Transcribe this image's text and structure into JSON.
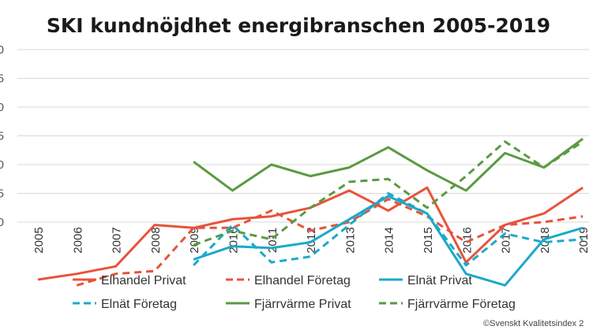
{
  "chart_data": {
    "type": "line",
    "title": "SKI kundnöjdhet energibranschen 2005-2019",
    "credit": "©Svenskt Kvalitetsindex 2",
    "xlabel": "",
    "ylabel": "",
    "x": [
      "2005",
      "2006",
      "2007",
      "2008",
      "2009",
      "2010",
      "2011",
      "2012",
      "2013",
      "2014",
      "2015",
      "2016",
      "2017",
      "2018",
      "2019"
    ],
    "y_tick_labels": [
      "0",
      "5",
      "0",
      "5",
      "0",
      "5",
      "0"
    ],
    "grid": true,
    "legend_position": "bottom",
    "series": [
      {
        "name": "Elhandel Privat",
        "color": "#e8533a",
        "dash": false,
        "values": [
          60,
          61,
          62.3,
          69.5,
          69,
          70.5,
          71,
          72.5,
          75.5,
          72,
          76,
          63,
          69.5,
          71.5,
          76
        ]
      },
      {
        "name": "Elhandel Företag",
        "color": "#e8533a",
        "dash": true,
        "values": [
          null,
          59,
          61,
          61.5,
          69,
          69,
          72,
          68.5,
          70,
          74,
          71,
          66.5,
          69.5,
          70,
          71
        ]
      },
      {
        "name": "Elnät Privat",
        "color": "#1ba9c9",
        "dash": false,
        "values": [
          null,
          null,
          null,
          null,
          63.5,
          65.8,
          65.5,
          66.5,
          70.5,
          74.5,
          71.5,
          61,
          59,
          67,
          69
        ]
      },
      {
        "name": "Elnät Företag",
        "color": "#1ba9c9",
        "dash": true,
        "values": [
          null,
          null,
          null,
          null,
          62.5,
          69.5,
          63,
          64,
          69.5,
          75,
          71.5,
          62.5,
          68,
          66.5,
          67
        ]
      },
      {
        "name": "Fjärrvärme Privat",
        "color": "#5a9a42",
        "dash": false,
        "values": [
          null,
          null,
          null,
          null,
          80.5,
          75.5,
          80,
          78,
          79.5,
          83,
          79,
          75.5,
          82,
          79.5,
          84.5
        ]
      },
      {
        "name": "Fjärrvärme Företag",
        "color": "#5a9a42",
        "dash": true,
        "values": [
          null,
          null,
          null,
          null,
          66,
          68.5,
          67,
          72.5,
          77,
          77.5,
          72.5,
          78,
          84,
          79.5,
          84
        ]
      }
    ]
  }
}
